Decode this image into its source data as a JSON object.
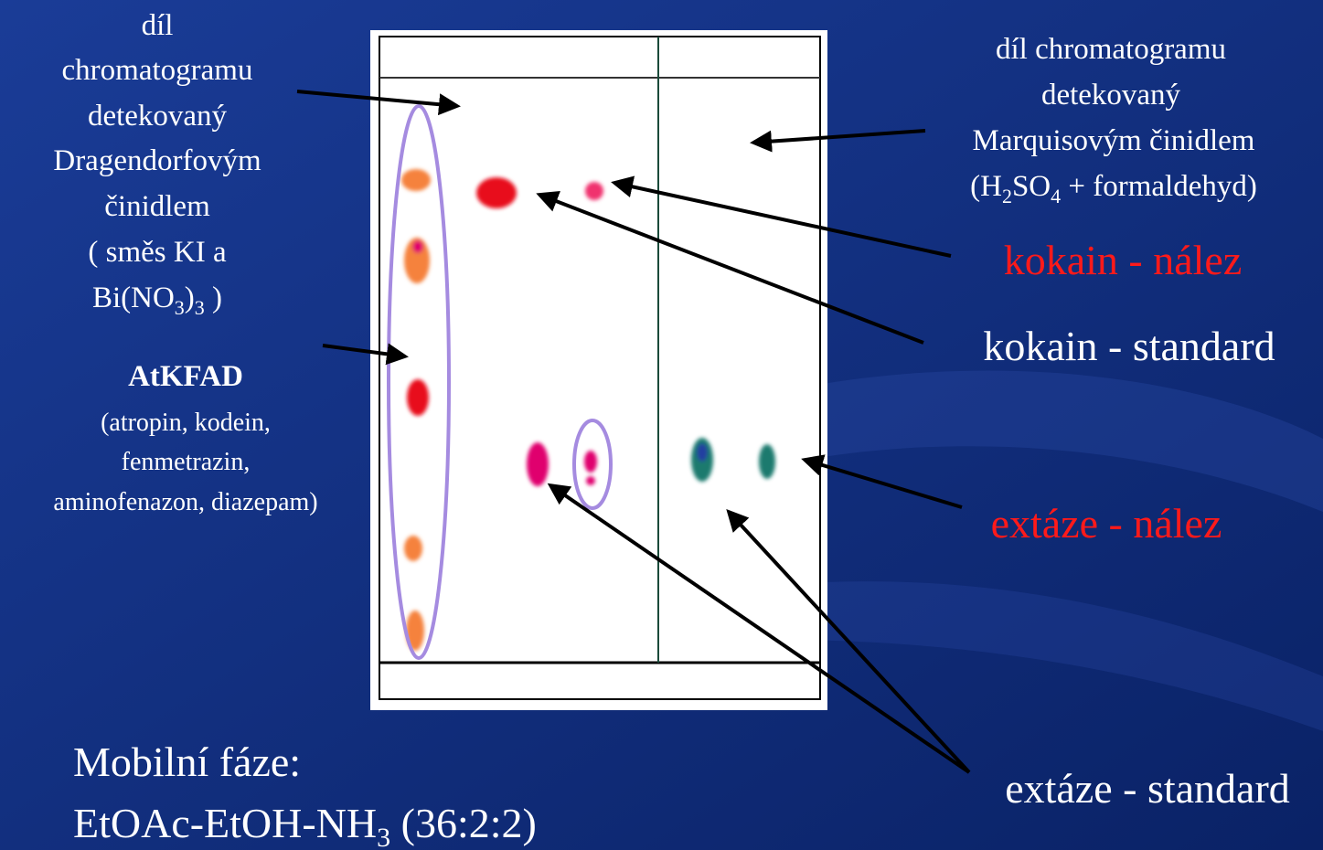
{
  "left_label": {
    "lines": [
      "díl",
      "chromatogramu",
      "detekovaný",
      "Dragendorfovým",
      "činidlem",
      "( směs KI a"
    ],
    "formula": [
      "Bi(NO",
      {
        "sub": "3"
      },
      ")",
      {
        "sub": "3"
      },
      " )"
    ]
  },
  "atkfad": {
    "title": "AtKFAD",
    "lines": [
      "(atropin, kodein,",
      "fenmetrazin,",
      "aminofenazon, diazepam)"
    ]
  },
  "right_label": {
    "lines": [
      "díl chromatogramu",
      "detekovaný",
      "Marquisovým činidlem"
    ],
    "formula": [
      "(H",
      {
        "sub": "2"
      },
      "SO",
      {
        "sub": "4"
      },
      " + formaldehyd)"
    ]
  },
  "kokain_finding": "kokain - nález",
  "kokain_standard": "kokain - standard",
  "extasy_finding": "extáze - nález",
  "extasy_standard": "extáze - standard",
  "mobile_phase": {
    "title": "Mobilní fáze:",
    "formula": [
      "EtOAc-EtOH-NH",
      {
        "sub": "3"
      },
      " (36:2:2)"
    ]
  }
}
